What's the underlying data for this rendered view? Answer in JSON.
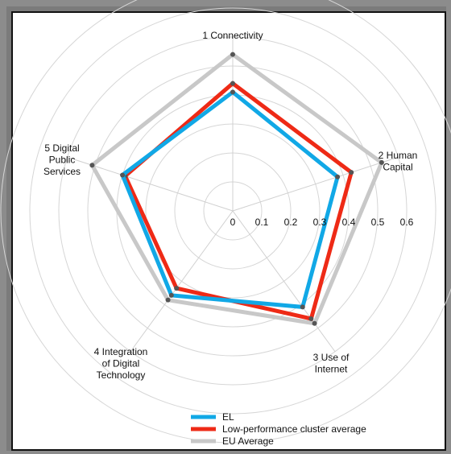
{
  "chart_data": {
    "type": "radar",
    "axes": [
      [
        "1 Connectivity"
      ],
      [
        "2 Human",
        "Capital"
      ],
      [
        "3 Use of",
        "Internet"
      ],
      [
        "4 Integration",
        "of Digital",
        "Technology"
      ],
      [
        "5 Digital",
        "Public",
        "Services"
      ]
    ],
    "ticks": [
      "0",
      "0.1",
      "0.2",
      "0.3",
      "0.4",
      "0.5",
      "0.6"
    ],
    "rmax": 0.6,
    "grid": true,
    "legend_position": "bottom",
    "series": [
      {
        "name": "EU Average",
        "color": "#c8c8c8",
        "values": [
          0.54,
          0.54,
          0.48,
          0.38,
          0.51
        ]
      },
      {
        "name": "Low-performance cluster average",
        "color": "#ee2a16",
        "values": [
          0.44,
          0.43,
          0.46,
          0.33,
          0.39
        ]
      },
      {
        "name": "EL",
        "color": "#11a8e6",
        "values": [
          0.41,
          0.38,
          0.41,
          0.36,
          0.4
        ]
      }
    ],
    "legend": [
      "EL",
      "Low-performance cluster average",
      "EU Average"
    ]
  }
}
